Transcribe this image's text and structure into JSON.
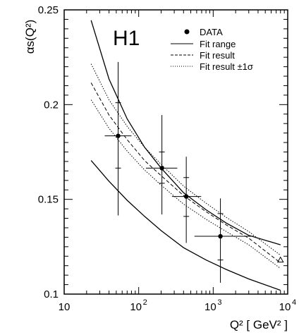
{
  "chart_data": {
    "type": "scatter",
    "experiment_label": "H1",
    "xlabel": "Q² [ GeV² ]",
    "ylabel": "αs(Q²)",
    "xscale": "log",
    "xlim": [
      10,
      10000
    ],
    "ylim": [
      0.1,
      0.25
    ],
    "x_ticks": [
      10,
      100,
      1000,
      10000
    ],
    "x_tick_labels": [
      {
        "base": "10",
        "exp": ""
      },
      {
        "base": "10",
        "exp": "2"
      },
      {
        "base": "10",
        "exp": "3"
      },
      {
        "base": "10",
        "exp": "4"
      }
    ],
    "y_ticks": [
      0.1,
      0.15,
      0.2,
      0.25
    ],
    "y_tick_labels": [
      "0.1",
      "0.15",
      "0.2",
      "0.25"
    ],
    "grid": false,
    "legend_position": "top-right",
    "legend": [
      {
        "label": "DATA",
        "style": "marker"
      },
      {
        "label": "Fit range",
        "style": "solid"
      },
      {
        "label": "Fit result",
        "style": "dashed"
      },
      {
        "label": "Fit result ±1σ",
        "style": "dotted"
      }
    ],
    "data_points": [
      {
        "x": 53,
        "x_low": 35,
        "x_high": 80,
        "y": 0.1835,
        "stat_low": 0.1665,
        "stat_high": 0.201,
        "tot_low": 0.1415,
        "tot_high": 0.2225
      },
      {
        "x": 205,
        "x_low": 125,
        "x_high": 330,
        "y": 0.1665,
        "stat_low": 0.1585,
        "stat_high": 0.175,
        "tot_low": 0.142,
        "tot_high": 0.1945
      },
      {
        "x": 435,
        "x_low": 280,
        "x_high": 690,
        "y": 0.1515,
        "stat_low": 0.141,
        "stat_high": 0.1615,
        "tot_low": 0.127,
        "tot_high": 0.1725
      },
      {
        "x": 1250,
        "x_low": 560,
        "x_high": 3500,
        "y": 0.1305,
        "stat_low": 0.118,
        "stat_high": 0.1425,
        "tot_low": 0.106,
        "tot_high": 0.1505
      }
    ],
    "series": [
      {
        "style": "solid",
        "x": [
          23,
          40,
          70,
          120,
          200,
          400,
          800,
          1500,
          3000,
          8000
        ],
        "y": [
          0.2445,
          0.2135,
          0.1925,
          0.1775,
          0.1665,
          0.1535,
          0.1445,
          0.1375,
          0.131,
          0.126
        ]
      },
      {
        "style": "solid",
        "x": [
          23,
          40,
          70,
          120,
          200,
          400,
          800,
          1500,
          3000,
          8000
        ],
        "y": [
          0.1705,
          0.1595,
          0.1495,
          0.141,
          0.1335,
          0.1245,
          0.118,
          0.113,
          0.108,
          0.102
        ]
      },
      {
        "style": "dashed",
        "x": [
          23,
          40,
          70,
          120,
          200,
          400,
          800,
          1500,
          3000,
          8000
        ],
        "y": [
          0.2115,
          0.1945,
          0.1815,
          0.1705,
          0.1625,
          0.152,
          0.1435,
          0.1365,
          0.1295,
          0.1165
        ]
      },
      {
        "style": "dotted",
        "x": [
          23,
          40,
          70,
          120,
          200,
          400,
          800,
          1500,
          3000,
          8000
        ],
        "y": [
          0.2215,
          0.2025,
          0.1885,
          0.1775,
          0.1685,
          0.157,
          0.148,
          0.1405,
          0.133,
          0.1205
        ]
      },
      {
        "style": "dotted",
        "x": [
          23,
          40,
          70,
          120,
          200,
          400,
          800,
          1500,
          3000,
          8000
        ],
        "y": [
          0.2025,
          0.1875,
          0.1755,
          0.1655,
          0.1575,
          0.1475,
          0.1395,
          0.133,
          0.126,
          0.1135
        ]
      }
    ],
    "extrapolation_marker": {
      "x": 8000,
      "y": 0.118
    }
  }
}
